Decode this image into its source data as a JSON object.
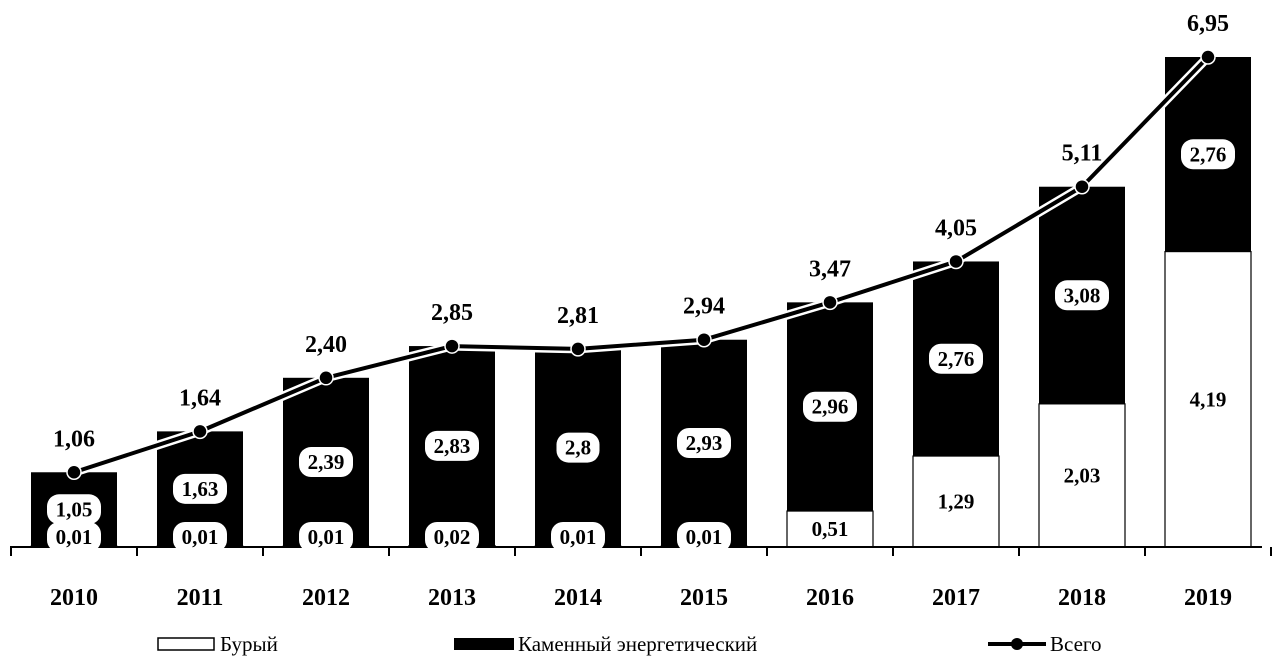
{
  "chart_data": {
    "type": "bar",
    "stacked": true,
    "categories": [
      "2010",
      "2011",
      "2012",
      "2013",
      "2014",
      "2015",
      "2016",
      "2017",
      "2018",
      "2019"
    ],
    "series": [
      {
        "name": "Бурый",
        "type": "bar",
        "color": "#ffffff",
        "values": [
          0.01,
          0.01,
          0.01,
          0.02,
          0.01,
          0.01,
          0.51,
          1.29,
          2.03,
          4.19
        ]
      },
      {
        "name": "Каменный энергетический",
        "type": "bar",
        "color": "#000000",
        "values": [
          1.05,
          1.63,
          2.39,
          2.83,
          2.8,
          2.93,
          2.96,
          2.76,
          3.08,
          2.76
        ]
      },
      {
        "name": "Всего",
        "type": "line",
        "color": "#000000",
        "values": [
          1.06,
          1.64,
          2.4,
          2.85,
          2.81,
          2.94,
          3.47,
          4.05,
          5.11,
          6.95
        ]
      }
    ],
    "data_labels": {
      "Бурый": [
        "0,01",
        "0,01",
        "0,01",
        "0,02",
        "0,01",
        "0,01",
        "0,51",
        "1,29",
        "2,03",
        "4,19"
      ],
      "Каменный энергетический": [
        "1,05",
        "1,63",
        "2,39",
        "2,83",
        "2,8",
        "2,93",
        "2,96",
        "2,76",
        "3,08",
        "2,76"
      ],
      "Всего": [
        "1,06",
        "1,64",
        "2,40",
        "2,85",
        "2,81",
        "2,94",
        "3,47",
        "4,05",
        "5,11",
        "6,95"
      ]
    },
    "ylim": [
      0,
      6.95
    ],
    "grid": false,
    "legend_position": "bottom",
    "legend": [
      "Бурый",
      "Каменный энергетический",
      "Всего"
    ]
  }
}
